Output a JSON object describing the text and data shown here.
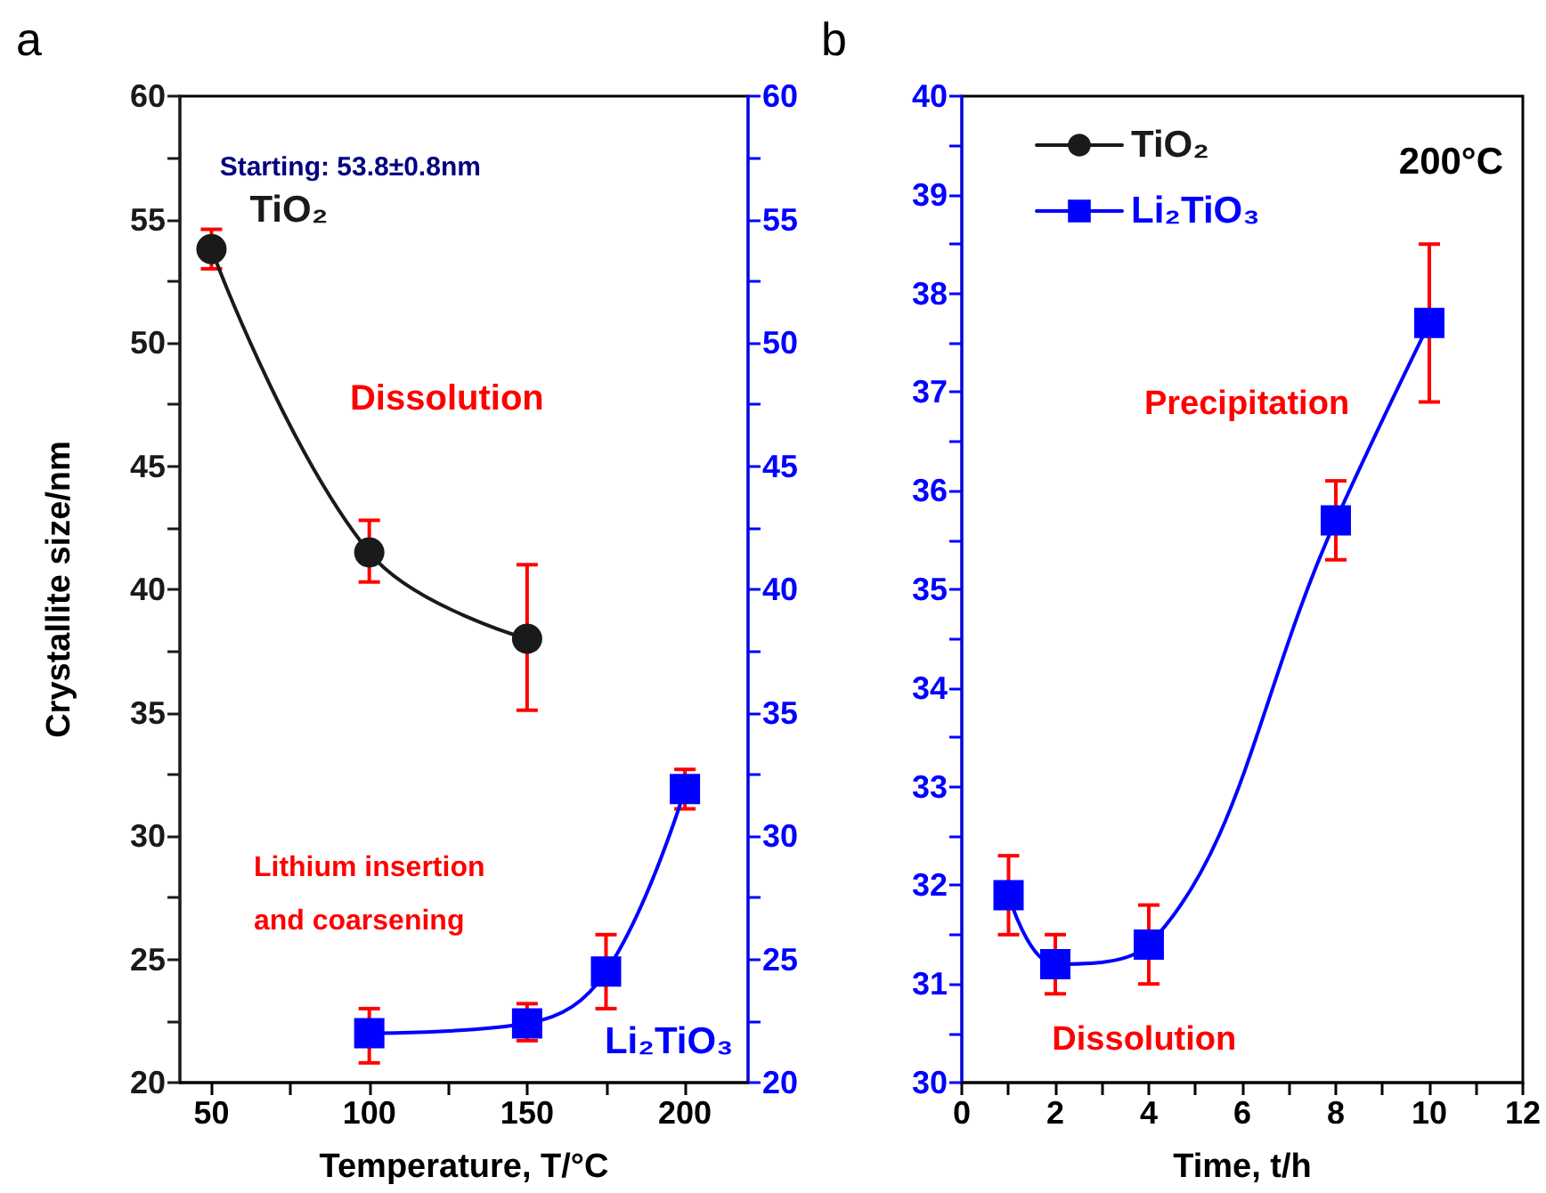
{
  "chart_data": [
    {
      "type": "line",
      "title": "a",
      "xlabel": "Temperature, T/°C",
      "ylabel": "Crystallite size/nm",
      "xlim": [
        40,
        220
      ],
      "xticks": [
        50,
        {
          "value": 75,
          "label": null
        },
        100,
        {
          "value": 125,
          "label": null
        },
        150,
        {
          "value": 175,
          "label": null
        },
        200
      ],
      "ylim": [
        20,
        60
      ],
      "yticks": [
        20,
        {
          "value": 22.5,
          "label": null
        },
        25,
        {
          "value": 27.5,
          "label": null
        },
        30,
        {
          "value": 32.5,
          "label": null
        },
        35,
        {
          "value": 37.5,
          "label": null
        },
        40,
        {
          "value": 42.5,
          "label": null
        },
        45,
        {
          "value": 47.5,
          "label": null
        },
        50,
        {
          "value": 52.5,
          "label": null
        },
        55,
        {
          "value": 57.5,
          "label": null
        },
        60
      ],
      "y2lim": [
        20,
        60
      ],
      "y2ticks": [
        20,
        {
          "value": 22.5,
          "label": null
        },
        25,
        {
          "value": 27.5,
          "label": null
        },
        30,
        {
          "value": 32.5,
          "label": null
        },
        35,
        {
          "value": 37.5,
          "label": null
        },
        40,
        {
          "value": 42.5,
          "label": null
        },
        45,
        {
          "value": 47.5,
          "label": null
        },
        50,
        {
          "value": 52.5,
          "label": null
        },
        55,
        {
          "value": 57.5,
          "label": null
        },
        60
      ],
      "legend": false,
      "grid": false,
      "series": [
        {
          "name": "TiO₂",
          "color": "#1a1a1a",
          "marker": "circle",
          "x": [
            50,
            100,
            150
          ],
          "values": [
            53.8,
            41.5,
            38.0
          ],
          "errors": [
            [
              53.0,
              54.6
            ],
            [
              40.3,
              42.8
            ],
            [
              35.1,
              41.0
            ]
          ]
        },
        {
          "name": "Li₂TiO₃",
          "color": "#0000ff",
          "marker": "square",
          "axis": "y2",
          "x": [
            100,
            150,
            175,
            200
          ],
          "values": [
            22.0,
            22.4,
            24.5,
            31.9
          ],
          "errors": [
            [
              20.8,
              23.0
            ],
            [
              21.7,
              23.2
            ],
            [
              23.0,
              26.0
            ],
            [
              31.1,
              32.7
            ]
          ]
        }
      ],
      "annotations": [
        "Starting: 53.8±0.8nm",
        "Dissolution",
        "Lithium insertion and coarsening"
      ]
    },
    {
      "type": "line",
      "title": "b",
      "xlabel": "Time, t/h",
      "xlim": [
        0,
        12
      ],
      "xticks": [
        0,
        {
          "value": 1,
          "label": null
        },
        2,
        {
          "value": 3,
          "label": null
        },
        4,
        {
          "value": 5,
          "label": null
        },
        6,
        {
          "value": 7,
          "label": null
        },
        8,
        {
          "value": 9,
          "label": null
        },
        10,
        {
          "value": 11,
          "label": null
        },
        12
      ],
      "ylim": [
        30,
        40
      ],
      "yticks": [
        30,
        {
          "value": 30.5,
          "label": null
        },
        31,
        {
          "value": 31.5,
          "label": null
        },
        32,
        {
          "value": 32.5,
          "label": null
        },
        33,
        {
          "value": 33.5,
          "label": null
        },
        34,
        {
          "value": 34.5,
          "label": null
        },
        35,
        {
          "value": 35.5,
          "label": null
        },
        36,
        {
          "value": 36.5,
          "label": null
        },
        37,
        {
          "value": 37.5,
          "label": null
        },
        38,
        {
          "value": 38.5,
          "label": null
        },
        39,
        {
          "value": 39.5,
          "label": null
        },
        40
      ],
      "legend": "top left",
      "grid": false,
      "series": [
        {
          "name": "TiO₂",
          "color": "#1a1a1a",
          "marker": "circle"
        },
        {
          "name": "Li₂TiO₃",
          "color": "#0000ff",
          "marker": "square",
          "x": [
            1,
            2,
            4,
            8,
            10
          ],
          "values": [
            31.9,
            31.2,
            31.4,
            35.7,
            37.7
          ],
          "errors": [
            [
              31.5,
              32.3
            ],
            [
              30.9,
              31.5
            ],
            [
              31.0,
              31.8
            ],
            [
              35.3,
              36.1
            ],
            [
              36.9,
              38.5
            ]
          ]
        }
      ],
      "annotations": [
        "200°C",
        "Precipitation",
        "Dissolution"
      ]
    }
  ]
}
